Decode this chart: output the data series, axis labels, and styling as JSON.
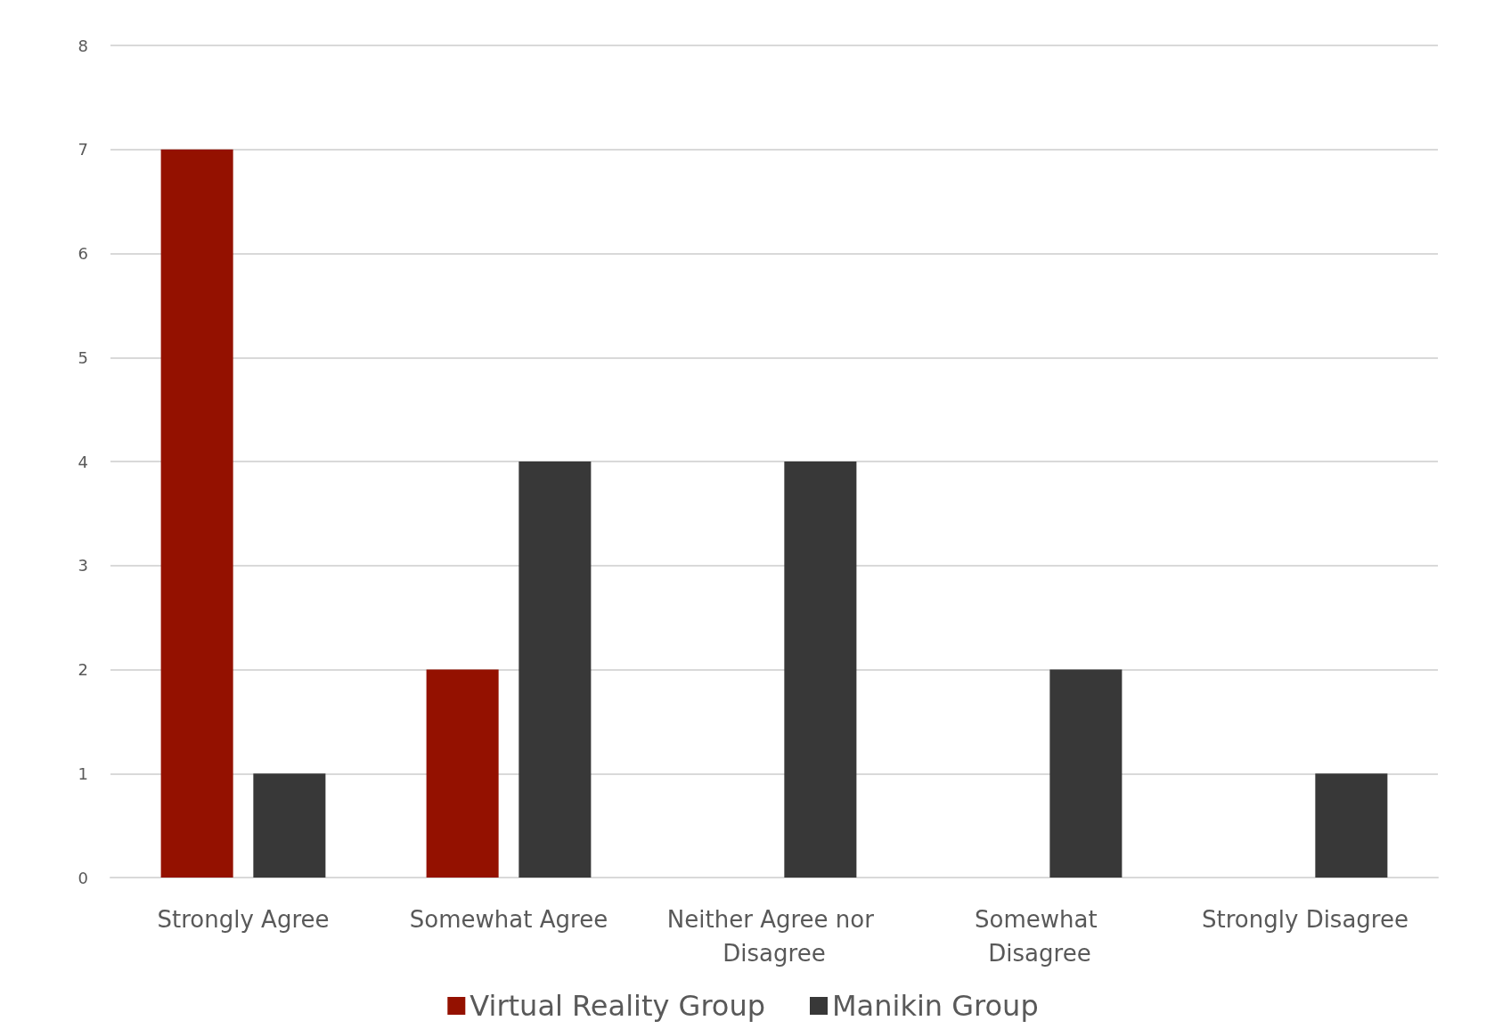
{
  "chart_data": {
    "type": "bar",
    "categories": [
      "Strongly Agree",
      "Somewhat Agree",
      "Neither Agree nor Disagree",
      "Somewhat Disagree",
      "Strongly Disagree"
    ],
    "series": [
      {
        "name": "Virtual Reality Group",
        "color": "#941100",
        "values": [
          7,
          2,
          0,
          0,
          0
        ]
      },
      {
        "name": "Manikin Group",
        "color": "#383838",
        "values": [
          1,
          4,
          4,
          2,
          1
        ]
      }
    ],
    "ylim": [
      0,
      8
    ],
    "yticks": [
      0,
      1,
      2,
      3,
      4,
      5,
      6,
      7,
      8
    ],
    "grid": "y",
    "legend": "bottom"
  }
}
